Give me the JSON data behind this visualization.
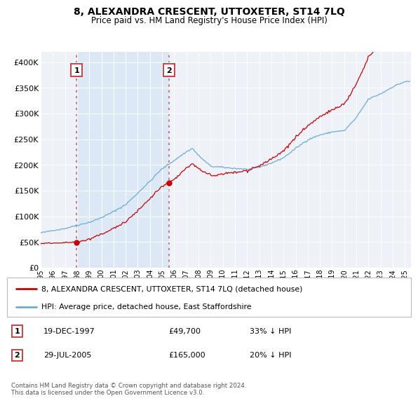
{
  "title": "8, ALEXANDRA CRESCENT, UTTOXETER, ST14 7LQ",
  "subtitle": "Price paid vs. HM Land Registry's House Price Index (HPI)",
  "xlim_start": 1995.0,
  "xlim_end": 2025.5,
  "ylim_bottom": 0,
  "ylim_top": 420000,
  "yticks": [
    0,
    50000,
    100000,
    150000,
    200000,
    250000,
    300000,
    350000,
    400000
  ],
  "ytick_labels": [
    "£0",
    "£50K",
    "£100K",
    "£150K",
    "£200K",
    "£250K",
    "£300K",
    "£350K",
    "£400K"
  ],
  "xtick_years": [
    1995,
    1996,
    1997,
    1998,
    1999,
    2000,
    2001,
    2002,
    2003,
    2004,
    2005,
    2006,
    2007,
    2008,
    2009,
    2010,
    2011,
    2012,
    2013,
    2014,
    2015,
    2016,
    2017,
    2018,
    2019,
    2020,
    2021,
    2022,
    2023,
    2024,
    2025
  ],
  "sale1_x": 1997.96,
  "sale1_y": 49700,
  "sale2_x": 2005.57,
  "sale2_y": 165000,
  "sale1_label": "1",
  "sale1_date": "19-DEC-1997",
  "sale1_price": "£49,700",
  "sale1_hpi": "33% ↓ HPI",
  "sale2_label": "2",
  "sale2_date": "29-JUL-2005",
  "sale2_price": "£165,000",
  "sale2_hpi": "20% ↓ HPI",
  "hpi_color": "#6aaed6",
  "sale_color": "#cc0000",
  "shade_color": "#dce8f5",
  "bg_color": "#eef2f8",
  "grid_color": "#ffffff",
  "legend1_text": "8, ALEXANDRA CRESCENT, UTTOXETER, ST14 7LQ (detached house)",
  "legend2_text": "HPI: Average price, detached house, East Staffordshire",
  "footer": "Contains HM Land Registry data © Crown copyright and database right 2024.\nThis data is licensed under the Open Government Licence v3.0.",
  "hpi_key_years": [
    1995,
    1996,
    1997,
    1998,
    1999,
    2000,
    2001,
    2002,
    2003,
    2004,
    2005,
    2006,
    2007,
    2007.5,
    2008,
    2009,
    2010,
    2011,
    2012,
    2013,
    2014,
    2015,
    2016,
    2017,
    2018,
    2019,
    2020,
    2021,
    2022,
    2023,
    2024,
    2025
  ],
  "hpi_key_vals": [
    68000,
    72000,
    76000,
    82000,
    88000,
    96000,
    108000,
    122000,
    145000,
    168000,
    192000,
    208000,
    225000,
    232000,
    218000,
    198000,
    196000,
    194000,
    192000,
    196000,
    204000,
    214000,
    232000,
    248000,
    258000,
    264000,
    266000,
    292000,
    328000,
    338000,
    352000,
    362000
  ]
}
